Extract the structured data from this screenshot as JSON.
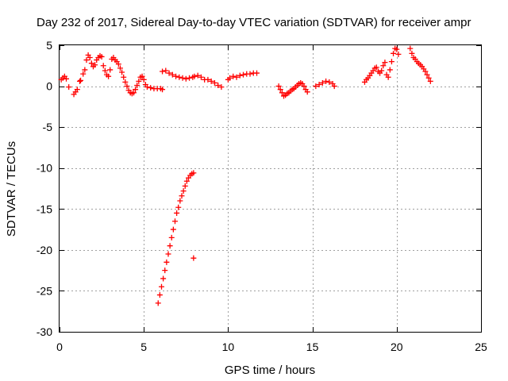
{
  "chart_data": {
    "type": "scatter",
    "title": "Day 232 of 2017, Sidereal Day-to-day VTEC variation (SDTVAR) for receiver ampr",
    "xlabel": "GPS time / hours",
    "ylabel": "SDTVAR / TECUs",
    "xlim": [
      0,
      25
    ],
    "ylim": [
      -30,
      5
    ],
    "xticks": [
      0,
      5,
      10,
      15,
      20,
      25
    ],
    "yticks": [
      5,
      0,
      -5,
      -10,
      -15,
      -20,
      -25,
      -30
    ],
    "grid": true,
    "marker": "+",
    "color": "#ff0000",
    "series": [
      {
        "name": "SDTVAR",
        "points": [
          [
            0.1,
            0.8
          ],
          [
            0.2,
            1.0
          ],
          [
            0.3,
            1.2
          ],
          [
            0.4,
            0.9
          ],
          [
            0.55,
            -0.1
          ],
          [
            0.85,
            -1.0
          ],
          [
            0.95,
            -0.7
          ],
          [
            1.05,
            -0.4
          ],
          [
            1.2,
            0.6
          ],
          [
            1.25,
            0.7
          ],
          [
            1.4,
            1.5
          ],
          [
            1.5,
            2.0
          ],
          [
            1.6,
            3.2
          ],
          [
            1.7,
            3.8
          ],
          [
            1.8,
            3.5
          ],
          [
            1.9,
            2.8
          ],
          [
            2.0,
            2.4
          ],
          [
            2.1,
            2.6
          ],
          [
            2.2,
            3.2
          ],
          [
            2.3,
            3.5
          ],
          [
            2.4,
            3.7
          ],
          [
            2.5,
            3.6
          ],
          [
            2.6,
            2.5
          ],
          [
            2.7,
            1.9
          ],
          [
            2.8,
            1.4
          ],
          [
            2.9,
            1.2
          ],
          [
            3.0,
            2.0
          ],
          [
            3.1,
            3.3
          ],
          [
            3.2,
            3.5
          ],
          [
            3.3,
            3.2
          ],
          [
            3.4,
            3.0
          ],
          [
            3.5,
            2.7
          ],
          [
            3.6,
            2.2
          ],
          [
            3.7,
            1.7
          ],
          [
            3.8,
            1.1
          ],
          [
            3.9,
            0.5
          ],
          [
            4.0,
            0.0
          ],
          [
            4.1,
            -0.5
          ],
          [
            4.2,
            -0.8
          ],
          [
            4.3,
            -0.9
          ],
          [
            4.4,
            -0.8
          ],
          [
            4.5,
            -0.4
          ],
          [
            4.6,
            0.1
          ],
          [
            4.7,
            0.6
          ],
          [
            4.8,
            1.1
          ],
          [
            4.9,
            1.2
          ],
          [
            5.0,
            0.8
          ],
          [
            5.1,
            0.2
          ],
          [
            5.2,
            -0.1
          ],
          [
            5.4,
            -0.2
          ],
          [
            5.6,
            -0.3
          ],
          [
            5.8,
            -0.3
          ],
          [
            6.0,
            -0.3
          ],
          [
            6.1,
            -0.4
          ],
          [
            5.85,
            -26.5
          ],
          [
            5.95,
            -25.5
          ],
          [
            6.05,
            -24.5
          ],
          [
            6.15,
            -23.5
          ],
          [
            6.25,
            -22.5
          ],
          [
            6.35,
            -21.5
          ],
          [
            6.45,
            -20.5
          ],
          [
            6.55,
            -19.5
          ],
          [
            6.65,
            -18.5
          ],
          [
            6.75,
            -17.5
          ],
          [
            6.85,
            -16.5
          ],
          [
            6.95,
            -15.5
          ],
          [
            7.05,
            -14.8
          ],
          [
            7.15,
            -14.0
          ],
          [
            7.25,
            -13.4
          ],
          [
            7.35,
            -12.8
          ],
          [
            7.45,
            -12.2
          ],
          [
            7.55,
            -11.6
          ],
          [
            7.65,
            -11.2
          ],
          [
            7.75,
            -10.9
          ],
          [
            7.85,
            -10.7
          ],
          [
            7.95,
            -10.6
          ],
          [
            7.95,
            -21.0
          ],
          [
            6.1,
            1.8
          ],
          [
            6.3,
            1.9
          ],
          [
            6.5,
            1.6
          ],
          [
            6.7,
            1.4
          ],
          [
            6.9,
            1.2
          ],
          [
            7.1,
            1.1
          ],
          [
            7.3,
            1.0
          ],
          [
            7.5,
            0.9
          ],
          [
            7.7,
            1.0
          ],
          [
            7.9,
            1.1
          ],
          [
            8.0,
            1.2
          ],
          [
            8.2,
            1.3
          ],
          [
            8.4,
            1.1
          ],
          [
            8.6,
            0.8
          ],
          [
            8.8,
            0.8
          ],
          [
            9.0,
            0.6
          ],
          [
            9.2,
            0.4
          ],
          [
            9.4,
            0.1
          ],
          [
            9.6,
            -0.1
          ],
          [
            10.0,
            0.8
          ],
          [
            10.1,
            1.0
          ],
          [
            10.3,
            1.2
          ],
          [
            10.5,
            1.1
          ],
          [
            10.7,
            1.3
          ],
          [
            10.9,
            1.4
          ],
          [
            11.1,
            1.5
          ],
          [
            11.3,
            1.5
          ],
          [
            11.5,
            1.6
          ],
          [
            11.7,
            1.6
          ],
          [
            13.0,
            0.0
          ],
          [
            13.1,
            -0.4
          ],
          [
            13.2,
            -0.8
          ],
          [
            13.3,
            -1.2
          ],
          [
            13.4,
            -1.1
          ],
          [
            13.5,
            -0.9
          ],
          [
            13.6,
            -0.8
          ],
          [
            13.7,
            -0.6
          ],
          [
            13.8,
            -0.4
          ],
          [
            13.9,
            -0.3
          ],
          [
            14.0,
            -0.1
          ],
          [
            14.1,
            0.1
          ],
          [
            14.2,
            0.3
          ],
          [
            14.3,
            0.4
          ],
          [
            14.4,
            0.3
          ],
          [
            14.5,
            0.0
          ],
          [
            14.6,
            -0.4
          ],
          [
            14.7,
            -0.7
          ],
          [
            15.2,
            0.0
          ],
          [
            15.4,
            0.2
          ],
          [
            15.6,
            0.4
          ],
          [
            15.8,
            0.6
          ],
          [
            16.0,
            0.5
          ],
          [
            16.2,
            0.3
          ],
          [
            16.3,
            0.0
          ],
          [
            18.1,
            0.5
          ],
          [
            18.2,
            0.8
          ],
          [
            18.3,
            1.0
          ],
          [
            18.4,
            1.3
          ],
          [
            18.5,
            1.6
          ],
          [
            18.6,
            1.9
          ],
          [
            18.7,
            2.2
          ],
          [
            18.8,
            2.3
          ],
          [
            18.9,
            1.8
          ],
          [
            19.0,
            1.6
          ],
          [
            19.1,
            1.9
          ],
          [
            19.2,
            2.5
          ],
          [
            19.3,
            2.9
          ],
          [
            19.4,
            1.4
          ],
          [
            19.5,
            1.1
          ],
          [
            19.6,
            2.0
          ],
          [
            19.7,
            3.0
          ],
          [
            19.8,
            4.0
          ],
          [
            19.9,
            4.6
          ],
          [
            20.0,
            4.5
          ],
          [
            20.1,
            3.9
          ],
          [
            20.8,
            4.6
          ],
          [
            20.9,
            4.0
          ],
          [
            21.0,
            3.5
          ],
          [
            21.1,
            3.3
          ],
          [
            21.2,
            3.0
          ],
          [
            21.3,
            2.8
          ],
          [
            21.4,
            2.6
          ],
          [
            21.5,
            2.4
          ],
          [
            21.6,
            2.1
          ],
          [
            21.7,
            1.8
          ],
          [
            21.8,
            1.4
          ],
          [
            21.9,
            1.0
          ],
          [
            22.0,
            0.6
          ]
        ]
      }
    ]
  }
}
